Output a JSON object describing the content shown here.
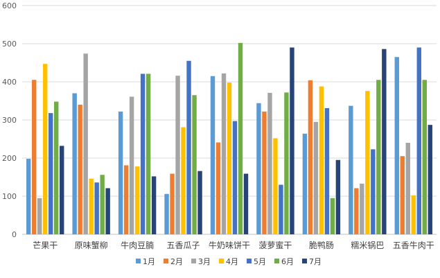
{
  "chart_data": {
    "type": "bar",
    "title": "",
    "xlabel": "",
    "ylabel": "",
    "ylim": [
      0,
      600
    ],
    "yticks": [
      0,
      100,
      200,
      300,
      400,
      500,
      600
    ],
    "grid": true,
    "legend_position": "bottom",
    "categories": [
      "芒果干",
      "原味蟹柳",
      "牛肉豆腩",
      "五香瓜子",
      "牛奶味饼干",
      "菠萝蜜干",
      "脆鸭肠",
      "糯米锅巴",
      "五香牛肉干"
    ],
    "series": [
      {
        "name": "1月",
        "color": "#5B9BD5",
        "values": [
          198,
          370,
          322,
          106,
          415,
          344,
          264,
          337,
          465
        ]
      },
      {
        "name": "2月",
        "color": "#ED7D31",
        "values": [
          405,
          340,
          181,
          159,
          241,
          322,
          404,
          121,
          205
        ]
      },
      {
        "name": "3月",
        "color": "#A5A5A5",
        "values": [
          95,
          474,
          361,
          416,
          422,
          371,
          295,
          133,
          240
        ]
      },
      {
        "name": "4月",
        "color": "#FFC000",
        "values": [
          447,
          146,
          178,
          281,
          398,
          252,
          388,
          376,
          102
        ]
      },
      {
        "name": "5月",
        "color": "#4472C4",
        "values": [
          318,
          136,
          421,
          455,
          297,
          130,
          331,
          223,
          490
        ]
      },
      {
        "name": "6月",
        "color": "#70AD47",
        "values": [
          348,
          156,
          421,
          365,
          502,
          372,
          95,
          405,
          405
        ]
      },
      {
        "name": "7月",
        "color": "#264478",
        "values": [
          232,
          121,
          152,
          166,
          159,
          490,
          195,
          486,
          287
        ]
      }
    ]
  }
}
